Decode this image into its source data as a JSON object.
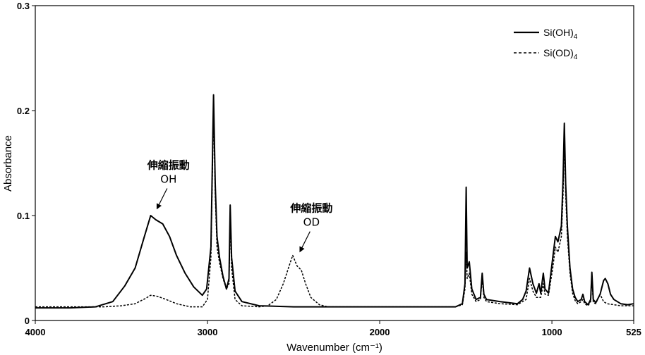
{
  "chart_data": {
    "type": "line",
    "xlabel": "Wavenumber (cm⁻¹)",
    "ylabel": "Absorbance",
    "xlim": [
      4000,
      525
    ],
    "ylim": [
      0,
      0.3
    ],
    "x_reversed": true,
    "x_ticks": [
      "4000",
      "3000",
      "2000",
      "1000",
      "525"
    ],
    "y_ticks": [
      "0",
      "0.1",
      "0.2",
      "0.3"
    ],
    "grid": false,
    "legend_position": "top-right",
    "legend": [
      {
        "label": "Si(OH)4",
        "base": "Si(OH)",
        "sub": "4",
        "style": "solid"
      },
      {
        "label": "Si(OD)4",
        "base": "Si(OD)",
        "sub": "4",
        "style": "dashed"
      }
    ],
    "series": [
      {
        "name": "Si(OH)4",
        "style": "solid",
        "points": [
          [
            4000,
            0.012
          ],
          [
            3800,
            0.012
          ],
          [
            3650,
            0.013
          ],
          [
            3550,
            0.018
          ],
          [
            3480,
            0.033
          ],
          [
            3420,
            0.05
          ],
          [
            3370,
            0.078
          ],
          [
            3330,
            0.1
          ],
          [
            3300,
            0.096
          ],
          [
            3260,
            0.092
          ],
          [
            3220,
            0.08
          ],
          [
            3180,
            0.062
          ],
          [
            3130,
            0.045
          ],
          [
            3080,
            0.032
          ],
          [
            3030,
            0.024
          ],
          [
            3005,
            0.03
          ],
          [
            2980,
            0.07
          ],
          [
            2965,
            0.215
          ],
          [
            2955,
            0.13
          ],
          [
            2945,
            0.08
          ],
          [
            2930,
            0.06
          ],
          [
            2910,
            0.042
          ],
          [
            2890,
            0.03
          ],
          [
            2875,
            0.04
          ],
          [
            2868,
            0.11
          ],
          [
            2860,
            0.06
          ],
          [
            2840,
            0.028
          ],
          [
            2800,
            0.018
          ],
          [
            2700,
            0.014
          ],
          [
            2500,
            0.013
          ],
          [
            2300,
            0.013
          ],
          [
            2000,
            0.013
          ],
          [
            1800,
            0.013
          ],
          [
            1560,
            0.013
          ],
          [
            1520,
            0.016
          ],
          [
            1505,
            0.035
          ],
          [
            1498,
            0.127
          ],
          [
            1492,
            0.05
          ],
          [
            1480,
            0.056
          ],
          [
            1465,
            0.03
          ],
          [
            1440,
            0.02
          ],
          [
            1415,
            0.022
          ],
          [
            1405,
            0.045
          ],
          [
            1395,
            0.025
          ],
          [
            1380,
            0.02
          ],
          [
            1300,
            0.018
          ],
          [
            1200,
            0.016
          ],
          [
            1170,
            0.02
          ],
          [
            1150,
            0.028
          ],
          [
            1130,
            0.05
          ],
          [
            1110,
            0.035
          ],
          [
            1090,
            0.026
          ],
          [
            1075,
            0.035
          ],
          [
            1065,
            0.026
          ],
          [
            1050,
            0.045
          ],
          [
            1040,
            0.03
          ],
          [
            1020,
            0.026
          ],
          [
            995,
            0.06
          ],
          [
            980,
            0.08
          ],
          [
            965,
            0.075
          ],
          [
            945,
            0.09
          ],
          [
            935,
            0.135
          ],
          [
            928,
            0.188
          ],
          [
            920,
            0.13
          ],
          [
            910,
            0.09
          ],
          [
            895,
            0.05
          ],
          [
            880,
            0.03
          ],
          [
            865,
            0.022
          ],
          [
            850,
            0.018
          ],
          [
            830,
            0.02
          ],
          [
            820,
            0.025
          ],
          [
            810,
            0.018
          ],
          [
            790,
            0.015
          ],
          [
            775,
            0.02
          ],
          [
            768,
            0.046
          ],
          [
            760,
            0.02
          ],
          [
            745,
            0.017
          ],
          [
            720,
            0.025
          ],
          [
            700,
            0.038
          ],
          [
            690,
            0.04
          ],
          [
            675,
            0.035
          ],
          [
            660,
            0.025
          ],
          [
            640,
            0.02
          ],
          [
            620,
            0.018
          ],
          [
            600,
            0.016
          ],
          [
            560,
            0.015
          ],
          [
            525,
            0.016
          ]
        ]
      },
      {
        "name": "Si(OD)4",
        "style": "dashed",
        "points": [
          [
            4000,
            0.013
          ],
          [
            3800,
            0.013
          ],
          [
            3600,
            0.013
          ],
          [
            3500,
            0.014
          ],
          [
            3420,
            0.016
          ],
          [
            3360,
            0.021
          ],
          [
            3330,
            0.024
          ],
          [
            3290,
            0.023
          ],
          [
            3240,
            0.02
          ],
          [
            3180,
            0.016
          ],
          [
            3100,
            0.013
          ],
          [
            3030,
            0.013
          ],
          [
            3000,
            0.02
          ],
          [
            2980,
            0.06
          ],
          [
            2965,
            0.2
          ],
          [
            2955,
            0.12
          ],
          [
            2945,
            0.07
          ],
          [
            2930,
            0.055
          ],
          [
            2910,
            0.04
          ],
          [
            2890,
            0.03
          ],
          [
            2875,
            0.035
          ],
          [
            2868,
            0.1
          ],
          [
            2860,
            0.05
          ],
          [
            2840,
            0.02
          ],
          [
            2800,
            0.014
          ],
          [
            2700,
            0.013
          ],
          [
            2650,
            0.014
          ],
          [
            2600,
            0.02
          ],
          [
            2560,
            0.035
          ],
          [
            2520,
            0.055
          ],
          [
            2505,
            0.062
          ],
          [
            2480,
            0.052
          ],
          [
            2455,
            0.048
          ],
          [
            2430,
            0.035
          ],
          [
            2400,
            0.022
          ],
          [
            2350,
            0.015
          ],
          [
            2300,
            0.013
          ],
          [
            2100,
            0.013
          ],
          [
            1900,
            0.013
          ],
          [
            1700,
            0.013
          ],
          [
            1560,
            0.013
          ],
          [
            1520,
            0.015
          ],
          [
            1505,
            0.03
          ],
          [
            1498,
            0.065
          ],
          [
            1492,
            0.04
          ],
          [
            1480,
            0.045
          ],
          [
            1465,
            0.025
          ],
          [
            1440,
            0.018
          ],
          [
            1415,
            0.02
          ],
          [
            1405,
            0.04
          ],
          [
            1395,
            0.022
          ],
          [
            1380,
            0.018
          ],
          [
            1300,
            0.016
          ],
          [
            1200,
            0.015
          ],
          [
            1150,
            0.02
          ],
          [
            1130,
            0.04
          ],
          [
            1110,
            0.028
          ],
          [
            1090,
            0.022
          ],
          [
            1065,
            0.022
          ],
          [
            1050,
            0.035
          ],
          [
            1040,
            0.025
          ],
          [
            1020,
            0.024
          ],
          [
            995,
            0.05
          ],
          [
            980,
            0.07
          ],
          [
            965,
            0.065
          ],
          [
            945,
            0.08
          ],
          [
            935,
            0.12
          ],
          [
            928,
            0.175
          ],
          [
            920,
            0.12
          ],
          [
            910,
            0.08
          ],
          [
            895,
            0.045
          ],
          [
            880,
            0.026
          ],
          [
            865,
            0.019
          ],
          [
            850,
            0.016
          ],
          [
            830,
            0.018
          ],
          [
            820,
            0.02
          ],
          [
            810,
            0.016
          ],
          [
            790,
            0.014
          ],
          [
            775,
            0.018
          ],
          [
            768,
            0.04
          ],
          [
            760,
            0.017
          ],
          [
            745,
            0.016
          ],
          [
            730,
            0.022
          ],
          [
            720,
            0.025
          ],
          [
            700,
            0.018
          ],
          [
            680,
            0.016
          ],
          [
            640,
            0.015
          ],
          [
            600,
            0.014
          ],
          [
            525,
            0.014
          ]
        ]
      }
    ],
    "annotations": [
      {
        "title": "伸縮振動",
        "label": "OH",
        "x": 3300,
        "y": 0.103
      },
      {
        "title": "伸縮振動",
        "label": "OD",
        "x": 2470,
        "y": 0.062
      }
    ]
  }
}
